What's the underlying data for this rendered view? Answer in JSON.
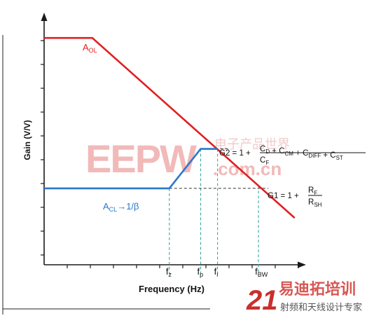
{
  "chart_data": {
    "type": "line",
    "xlabel": "Frequency (Hz)",
    "ylabel": "Gain (V/V)",
    "grid": false,
    "xlim": [
      0,
      10
    ],
    "ylim": [
      0,
      10
    ],
    "series": [
      {
        "name": "AOL",
        "name_main": "A",
        "name_sub": "OL",
        "color": "#e02020",
        "points": [
          [
            0,
            9.2
          ],
          [
            2.0,
            9.2
          ],
          [
            10.4,
            1.9
          ]
        ]
      },
      {
        "name": "ACL→1/β",
        "name_main": "A",
        "name_sub": "CL",
        "name_suffix": "→1/β",
        "color": "#2a78c8",
        "points": [
          [
            0,
            3.1
          ],
          [
            5.2,
            3.1
          ],
          [
            6.5,
            4.7
          ],
          [
            7.2,
            4.7
          ]
        ]
      }
    ],
    "markers": [
      {
        "main": "f",
        "sub": "z",
        "x": 5.2
      },
      {
        "main": "f",
        "sub": "p",
        "x": 6.5
      },
      {
        "main": "f",
        "sub": "i",
        "x": 7.2
      },
      {
        "main": "f",
        "sub": "BW",
        "x": 8.9
      }
    ],
    "levels": [
      {
        "id": "g2",
        "y": 4.7,
        "x_start": 6.5,
        "x_end": 7.7
      },
      {
        "id": "g1",
        "y": 3.1,
        "x_start": 5.2,
        "x_end": 8.9
      }
    ],
    "equations": {
      "g2": {
        "lhs": "G2 = 1 + ",
        "num": [
          [
            "C",
            "D"
          ],
          [
            " + C",
            "CM"
          ],
          [
            " + C",
            "DIFF"
          ],
          [
            " + C",
            "ST"
          ]
        ],
        "den": [
          [
            "C",
            "F"
          ]
        ]
      },
      "g1": {
        "lhs": "G1 = 1 + ",
        "num": [
          [
            "R",
            "F"
          ]
        ],
        "den": [
          [
            "R",
            "SH"
          ]
        ]
      }
    }
  },
  "watermarks": {
    "eepw": "EEPW",
    "eepw_url": ".com.cn",
    "eepw_cn": "电子产品世界",
    "site21_num": "21",
    "site21_cn": "易迪拓培训",
    "site21_sub": "射频和天线设计专家"
  }
}
